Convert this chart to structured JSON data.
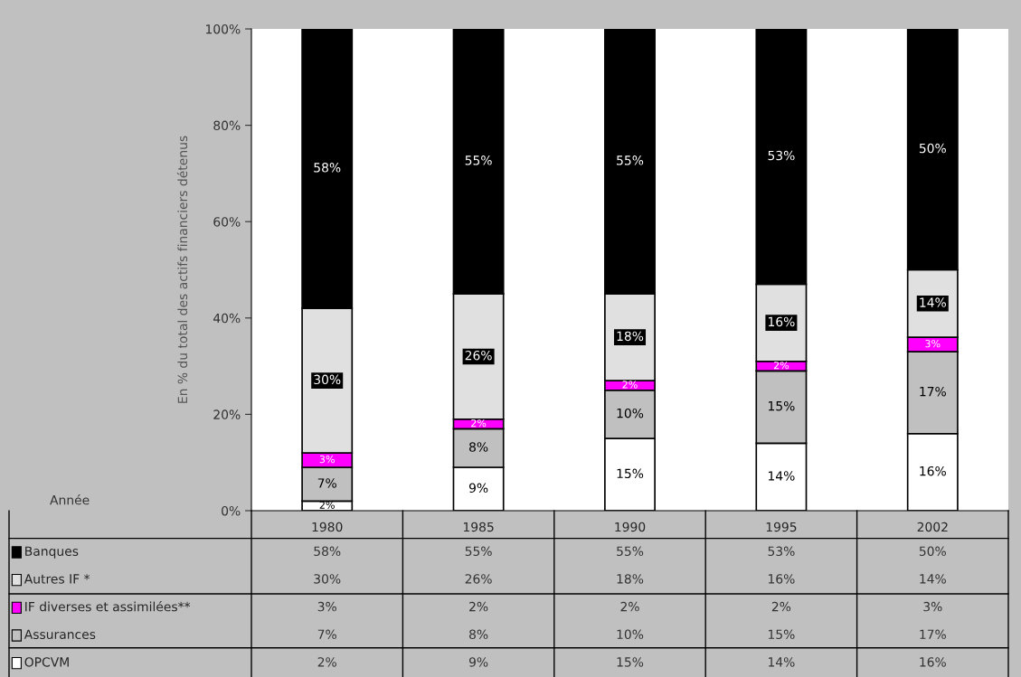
{
  "chart_data": {
    "type": "bar",
    "stacked": true,
    "ylabel": "En % du total des actifs financiers détenus",
    "categories": [
      "1980",
      "1985",
      "1990",
      "1995",
      "2002"
    ],
    "series": [
      {
        "name": "OPCVM",
        "color": "#ffffff",
        "values": [
          2,
          9,
          15,
          14,
          16
        ],
        "value_labels": [
          "2%",
          "9%",
          "15%",
          "14%",
          "16%"
        ]
      },
      {
        "name": "Assurances",
        "color": "#c0c0c0",
        "values": [
          7,
          8,
          10,
          15,
          17
        ],
        "value_labels": [
          "7%",
          "8%",
          "10%",
          "15%",
          "17%"
        ]
      },
      {
        "name": "IF diverses et assimilées**",
        "color": "#ff00ff",
        "values": [
          3,
          2,
          2,
          2,
          3
        ],
        "value_labels": [
          "3%",
          "2%",
          "2%",
          "2%",
          "3%"
        ]
      },
      {
        "name": "Autres IF *",
        "color": "#e0e0e0",
        "values": [
          30,
          26,
          18,
          16,
          14
        ],
        "value_labels": [
          "30%",
          "26%",
          "18%",
          "16%",
          "14%"
        ]
      },
      {
        "name": "Banques",
        "color": "#000000",
        "values": [
          58,
          55,
          55,
          53,
          50
        ],
        "value_labels": [
          "58%",
          "55%",
          "55%",
          "53%",
          "50%"
        ]
      }
    ],
    "ylim": [
      0,
      100
    ],
    "yticks": [
      {
        "value": 0,
        "label": "0%"
      },
      {
        "value": 20,
        "label": "20%"
      },
      {
        "value": 40,
        "label": "40%"
      },
      {
        "value": 60,
        "label": "60%"
      },
      {
        "value": 80,
        "label": "80%"
      },
      {
        "value": 100,
        "label": "100%"
      }
    ],
    "annotations": [
      "Année"
    ],
    "grid": false,
    "legend": "bottom"
  }
}
